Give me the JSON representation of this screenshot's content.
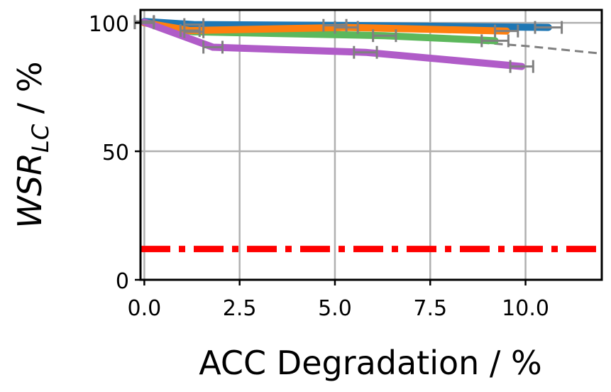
{
  "chart_data": {
    "type": "line",
    "title": "",
    "xlabel": "ACC Degradation / %",
    "ylabel": {
      "main": "WSR",
      "subscript": "LC",
      "suffix": " / %"
    },
    "xlim": [
      -0.1,
      12.0
    ],
    "ylim": [
      0,
      105
    ],
    "xticks": [
      0.0,
      2.5,
      5.0,
      7.5,
      10.0
    ],
    "xtick_labels": [
      "0.0",
      "2.5",
      "5.0",
      "7.5",
      "10.0"
    ],
    "yticks": [
      0,
      50,
      100
    ],
    "ytick_labels": [
      "0",
      "50",
      "100"
    ],
    "grid": true,
    "series": [
      {
        "name": "blue",
        "color": "#1f77b4",
        "style": "solid",
        "points": [
          [
            0.0,
            100.5
          ],
          [
            1.3,
            99.3
          ],
          [
            5.0,
            99.0
          ],
          [
            10.6,
            98.2
          ]
        ],
        "xerr": [
          0.25,
          0.25,
          0.3,
          0.35
        ]
      },
      {
        "name": "green",
        "color": "#5cb85c",
        "style": "solid",
        "points": [
          [
            0.0,
            100.0
          ],
          [
            1.3,
            96.5
          ],
          [
            6.3,
            95.0
          ],
          [
            9.2,
            93.0
          ]
        ],
        "xerr": [
          0.25,
          0.25,
          0.3,
          0.35
        ]
      },
      {
        "name": "orange",
        "color": "#ff7f0e",
        "style": "solid",
        "points": [
          [
            0.0,
            100.0
          ],
          [
            1.2,
            97.0
          ],
          [
            5.3,
            98.2
          ],
          [
            9.5,
            96.8
          ]
        ],
        "xerr": [
          0.25,
          0.25,
          0.3,
          0.3
        ]
      },
      {
        "name": "purple",
        "color": "#b05cc8",
        "style": "solid",
        "points": [
          [
            0.0,
            100.3
          ],
          [
            1.8,
            90.5
          ],
          [
            5.8,
            88.5
          ],
          [
            9.9,
            83.0
          ]
        ],
        "xerr": [
          0.25,
          0.25,
          0.3,
          0.3
        ]
      },
      {
        "name": "gray-dashed",
        "color": "#808080",
        "style": "dashed",
        "points": [
          [
            0.0,
            100.0
          ],
          [
            5.0,
            96.5
          ],
          [
            10.0,
            91.0
          ],
          [
            12.0,
            88.0
          ]
        ],
        "xerr": []
      },
      {
        "name": "red-dashdot",
        "color": "#ff0000",
        "style": "dashdot",
        "points": [
          [
            -0.1,
            12.0
          ],
          [
            12.0,
            12.0
          ]
        ],
        "xerr": []
      }
    ]
  }
}
